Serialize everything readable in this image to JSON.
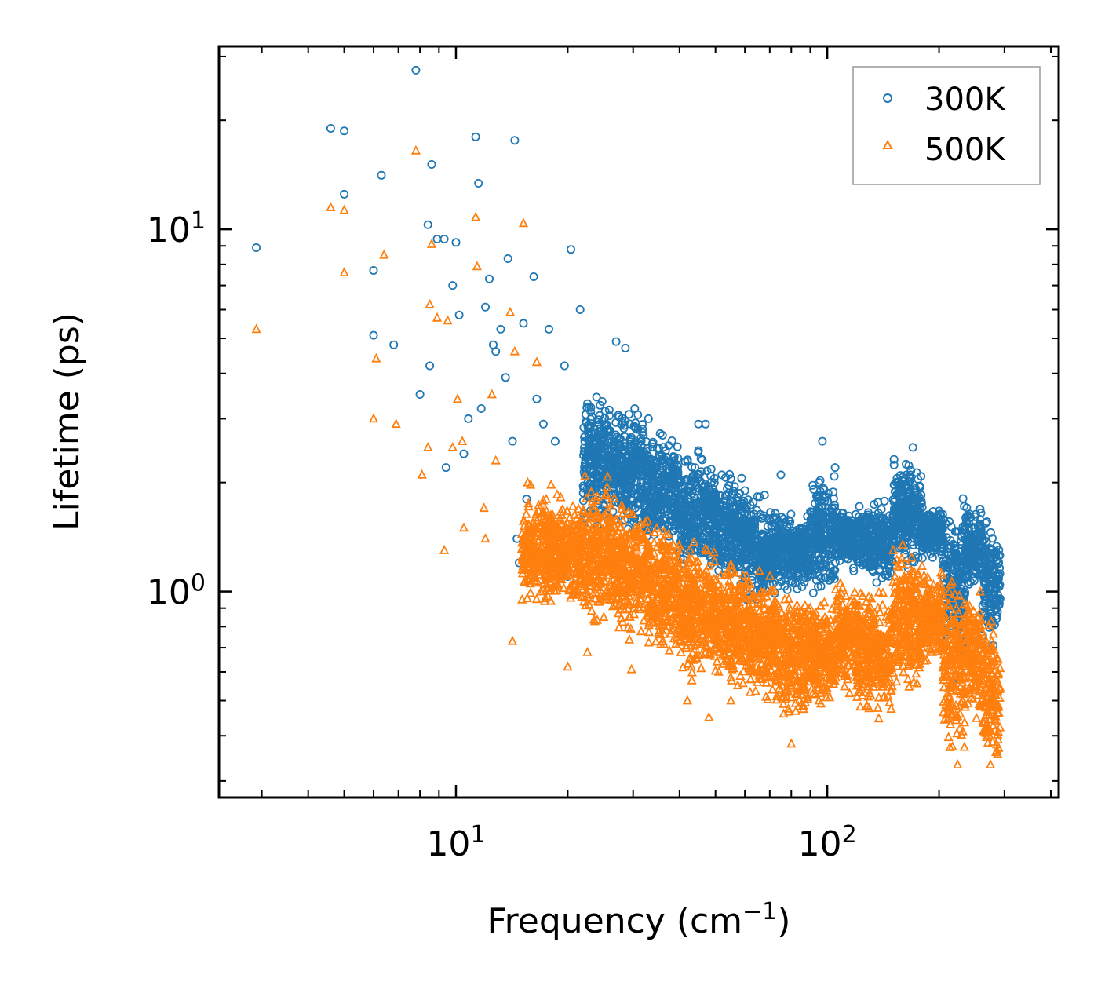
{
  "chart_data": {
    "type": "scatter",
    "title": "",
    "xlabel": "Frequency (cm",
    "xlabel_sup": "−1",
    "xlabel_end": ")",
    "ylabel": "Lifetime (ps)",
    "xscale": "log",
    "yscale": "log",
    "xlim": [
      2.3,
      420
    ],
    "ylim": [
      0.27,
      32
    ],
    "x_tick_labels": [
      {
        "value": 10,
        "base": "10",
        "exp": "1"
      },
      {
        "value": 100,
        "base": "10",
        "exp": "2"
      }
    ],
    "y_tick_labels": [
      {
        "value": 1,
        "base": "10",
        "exp": "0"
      },
      {
        "value": 10,
        "base": "10",
        "exp": "1"
      }
    ],
    "legend": {
      "position": "top-right",
      "entries": [
        "300K",
        "500K"
      ]
    },
    "series": [
      {
        "name": "300K",
        "marker": "circle",
        "color": "#1f77b4",
        "points": [
          [
            2.9,
            8.9
          ],
          [
            4.6,
            19.0
          ],
          [
            5.0,
            18.7
          ],
          [
            5.0,
            12.5
          ],
          [
            6.0,
            7.7
          ],
          [
            6.3,
            14.1
          ],
          [
            7.8,
            27.5
          ],
          [
            8.0,
            3.5
          ],
          [
            8.4,
            10.3
          ],
          [
            8.5,
            4.2
          ],
          [
            8.6,
            15.1
          ],
          [
            8.9,
            9.4
          ],
          [
            9.3,
            9.4
          ],
          [
            9.4,
            2.2
          ],
          [
            9.8,
            7.0
          ],
          [
            10.0,
            9.2
          ],
          [
            10.2,
            5.8
          ],
          [
            10.5,
            2.4
          ],
          [
            11.3,
            18.0
          ],
          [
            11.5,
            13.4
          ],
          [
            12.0,
            6.1
          ],
          [
            12.3,
            7.3
          ],
          [
            12.6,
            4.8
          ],
          [
            13.2,
            5.3
          ],
          [
            13.8,
            8.3
          ],
          [
            14.4,
            17.6
          ],
          [
            14.6,
            1.4
          ],
          [
            15.2,
            5.5
          ],
          [
            16.2,
            7.4
          ],
          [
            17.8,
            5.3
          ],
          [
            20.4,
            8.8
          ],
          [
            21.6,
            6.0
          ],
          [
            6.0,
            5.1
          ],
          [
            6.8,
            4.8
          ],
          [
            10.8,
            3.0
          ],
          [
            11.7,
            3.2
          ],
          [
            12.8,
            4.6
          ],
          [
            13.6,
            3.9
          ],
          [
            14.2,
            2.6
          ],
          [
            14.8,
            1.2
          ],
          [
            15.5,
            1.8
          ],
          [
            16.5,
            3.4
          ],
          [
            17.2,
            2.9
          ],
          [
            18.5,
            2.6
          ],
          [
            19.6,
            4.2
          ],
          [
            20.0,
            1.1
          ],
          [
            22.6,
            3.3
          ],
          [
            23.8,
            2.5
          ],
          [
            25.4,
            2.9
          ],
          [
            27.0,
            4.9
          ],
          [
            28.6,
            4.7
          ],
          [
            30.3,
            3.2
          ],
          [
            33.0,
            3.0
          ],
          [
            36.0,
            2.7
          ],
          [
            45.0,
            2.9
          ],
          [
            47.0,
            2.9
          ],
          [
            52.0,
            2.1
          ],
          [
            60.0,
            1.9
          ],
          [
            75.0,
            2.1
          ],
          [
            97.0,
            2.6
          ],
          [
            105.0,
            2.2
          ],
          [
            170.0,
            2.5
          ]
        ],
        "bands": [
          [
            22,
            26,
            1.4,
            3.8
          ],
          [
            26,
            32,
            1.4,
            3.4
          ],
          [
            32,
            40,
            1.2,
            2.9
          ],
          [
            40,
            50,
            1.05,
            2.6
          ],
          [
            50,
            60,
            0.95,
            2.3
          ],
          [
            60,
            68,
            0.85,
            2.0
          ],
          [
            68,
            75,
            0.95,
            1.8
          ],
          [
            75,
            90,
            0.95,
            1.7
          ],
          [
            90,
            105,
            0.9,
            2.3
          ],
          [
            105,
            125,
            1.1,
            1.8
          ],
          [
            125,
            150,
            1.0,
            1.85
          ],
          [
            150,
            180,
            1.1,
            2.45
          ],
          [
            180,
            205,
            1.2,
            1.75
          ],
          [
            205,
            235,
            0.55,
            1.95
          ],
          [
            235,
            262,
            0.95,
            1.8
          ],
          [
            262,
            292,
            0.65,
            1.8
          ]
        ]
      },
      {
        "name": "500K",
        "marker": "triangle",
        "color": "#ff7f0e",
        "points": [
          [
            2.9,
            5.3
          ],
          [
            4.6,
            11.5
          ],
          [
            5.0,
            11.3
          ],
          [
            5.0,
            7.6
          ],
          [
            6.0,
            3.0
          ],
          [
            6.1,
            4.4
          ],
          [
            6.4,
            8.5
          ],
          [
            6.9,
            2.9
          ],
          [
            7.8,
            16.5
          ],
          [
            8.1,
            2.1
          ],
          [
            8.4,
            2.5
          ],
          [
            8.5,
            6.2
          ],
          [
            8.6,
            9.1
          ],
          [
            8.9,
            5.7
          ],
          [
            9.3,
            1.3
          ],
          [
            9.5,
            5.6
          ],
          [
            9.8,
            2.5
          ],
          [
            10.1,
            3.4
          ],
          [
            10.4,
            2.6
          ],
          [
            10.5,
            1.5
          ],
          [
            11.3,
            10.8
          ],
          [
            11.4,
            7.9
          ],
          [
            12.0,
            1.4
          ],
          [
            12.5,
            3.5
          ],
          [
            14.0,
            5.9
          ],
          [
            14.2,
            0.73
          ],
          [
            14.4,
            4.6
          ],
          [
            15.2,
            10.4
          ],
          [
            16.5,
            4.3
          ],
          [
            20.0,
            0.62
          ],
          [
            22.6,
            0.68
          ],
          [
            29.7,
            0.61
          ],
          [
            11.9,
            1.7
          ],
          [
            12.8,
            2.3
          ],
          [
            15.6,
            2.0
          ],
          [
            17.5,
            1.8
          ],
          [
            19.0,
            1.3
          ],
          [
            21.0,
            1.0
          ],
          [
            25.0,
            0.85
          ],
          [
            42.0,
            0.5
          ],
          [
            48.0,
            0.45
          ],
          [
            55.0,
            0.5
          ],
          [
            80.0,
            0.38
          ],
          [
            95.0,
            0.5
          ],
          [
            120.0,
            0.6
          ]
        ],
        "bands": [
          [
            15,
            22,
            0.85,
            2.0
          ],
          [
            22,
            27,
            0.75,
            2.2
          ],
          [
            27,
            33,
            0.7,
            1.85
          ],
          [
            33,
            40,
            0.62,
            1.65
          ],
          [
            40,
            50,
            0.55,
            1.45
          ],
          [
            50,
            62,
            0.5,
            1.35
          ],
          [
            62,
            72,
            0.45,
            1.2
          ],
          [
            72,
            90,
            0.42,
            1.1
          ],
          [
            90,
            105,
            0.45,
            1.0
          ],
          [
            105,
            120,
            0.5,
            1.15
          ],
          [
            120,
            150,
            0.42,
            1.1
          ],
          [
            150,
            180,
            0.48,
            1.45
          ],
          [
            180,
            205,
            0.6,
            1.2
          ],
          [
            205,
            235,
            0.3,
            1.3
          ],
          [
            235,
            262,
            0.4,
            1.1
          ],
          [
            262,
            292,
            0.3,
            0.9
          ]
        ]
      }
    ]
  }
}
